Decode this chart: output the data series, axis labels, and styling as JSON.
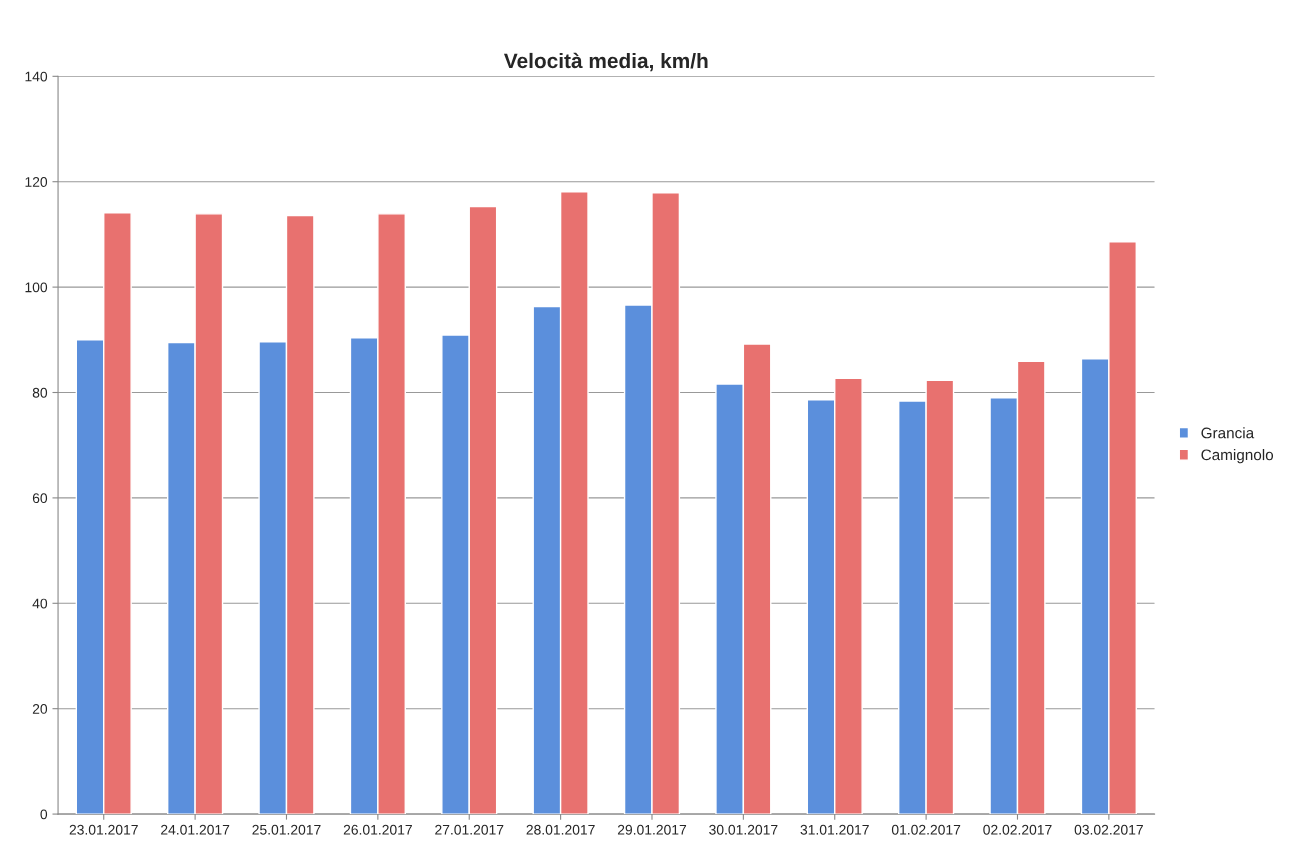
{
  "chart_data": {
    "type": "bar",
    "title": "Velocità media, km/h",
    "categories": [
      "23.01.2017",
      "24.01.2017",
      "25.01.2017",
      "26.01.2017",
      "27.01.2017",
      "28.01.2017",
      "29.01.2017",
      "30.01.2017",
      "31.01.2017",
      "01.02.2017",
      "02.02.2017",
      "03.02.2017"
    ],
    "series": [
      {
        "name": "Grancia",
        "color": "#5b8fdc",
        "values": [
          90.0,
          89.5,
          89.6,
          90.4,
          90.9,
          96.3,
          96.6,
          81.6,
          78.6,
          78.4,
          79.0,
          86.4
        ]
      },
      {
        "name": "Camignolo",
        "color": "#e8716f",
        "values": [
          114.1,
          113.9,
          113.6,
          113.9,
          115.3,
          118.1,
          117.9,
          89.2,
          82.7,
          82.3,
          85.9,
          108.6
        ]
      }
    ],
    "ylim": [
      0,
      140
    ],
    "yticks": [
      0,
      20,
      40,
      60,
      80,
      100,
      120,
      140
    ],
    "grid": "y",
    "legend": "right"
  }
}
